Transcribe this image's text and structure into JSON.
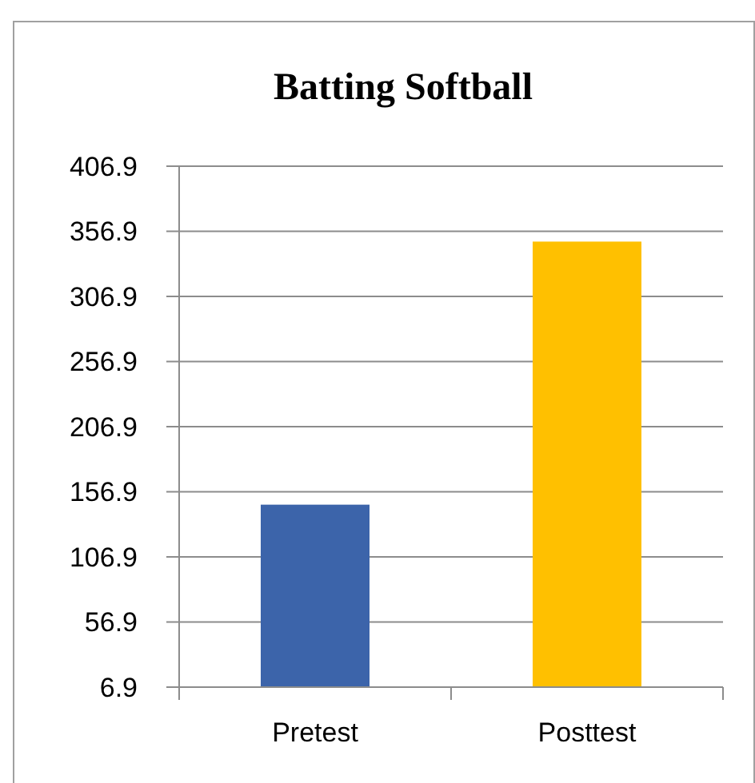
{
  "chart_data": {
    "type": "bar",
    "title": "Batting Softball",
    "categories": [
      "Pretest",
      "Posttest"
    ],
    "values": [
      147,
      349
    ],
    "colors": [
      "#3c64aa",
      "#ffc000"
    ],
    "ylim": [
      6.9,
      406.9
    ],
    "yticks": [
      6.9,
      56.9,
      106.9,
      156.9,
      206.9,
      256.9,
      306.9,
      356.9,
      406.9
    ],
    "grid": "y"
  }
}
